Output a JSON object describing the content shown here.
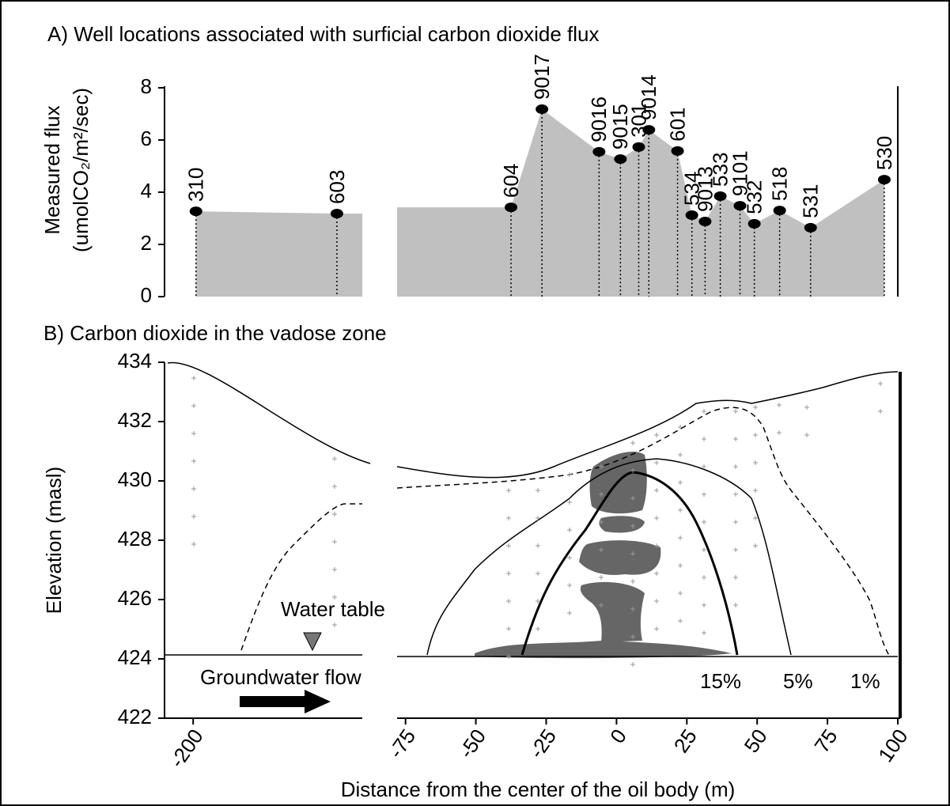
{
  "chart_data": [
    {
      "type": "area",
      "title": "A) Well locations associated with surficial carbon dioxide flux",
      "y_label": [
        "Measured flux",
        "(umolCO₂/m²/sec)"
      ],
      "point_labels": [
        "310",
        "603",
        "604",
        "9017",
        "9016",
        "9015",
        "301",
        "9014",
        "601",
        "534",
        "9013",
        "533",
        "9101",
        "532",
        "518",
        "531",
        "530"
      ],
      "x": [
        -199,
        -149,
        -37.5,
        -26.5,
        -6.2,
        1.4,
        7.9,
        11.5,
        21.7,
        26.8,
        31.5,
        36.9,
        43.9,
        49,
        58,
        69,
        95.2
      ],
      "values": [
        3.27,
        3.18,
        3.42,
        7.18,
        5.55,
        5.27,
        5.73,
        6.39,
        5.58,
        3.12,
        2.88,
        3.85,
        3.48,
        2.79,
        3.3,
        2.64,
        4.48
      ],
      "color": "#c0c0c0",
      "xlim_segments": [
        [
          -211,
          -140
        ],
        [
          -78,
          100
        ]
      ],
      "ylim": [
        0,
        8
      ],
      "yticks": [
        0,
        2,
        4,
        6,
        8
      ]
    },
    {
      "type": "section",
      "title": "B) Carbon dioxide in the vadose zone",
      "y_label": "Elevation (masl)",
      "x_label": "Distance from the center of the oil body (m)",
      "annotations": [
        "Water table",
        "Groundwater flow"
      ],
      "contour_labels": [
        "15%",
        "5%",
        "1%"
      ],
      "xlim_segments": [
        [
          -211,
          -140
        ],
        [
          -78,
          100
        ]
      ],
      "xticks": [
        -200,
        -75,
        -50,
        -25,
        0,
        25,
        50,
        75,
        100
      ],
      "ylim": [
        422,
        434
      ],
      "yticks": [
        422,
        424,
        426,
        428,
        430,
        432,
        434
      ]
    }
  ]
}
